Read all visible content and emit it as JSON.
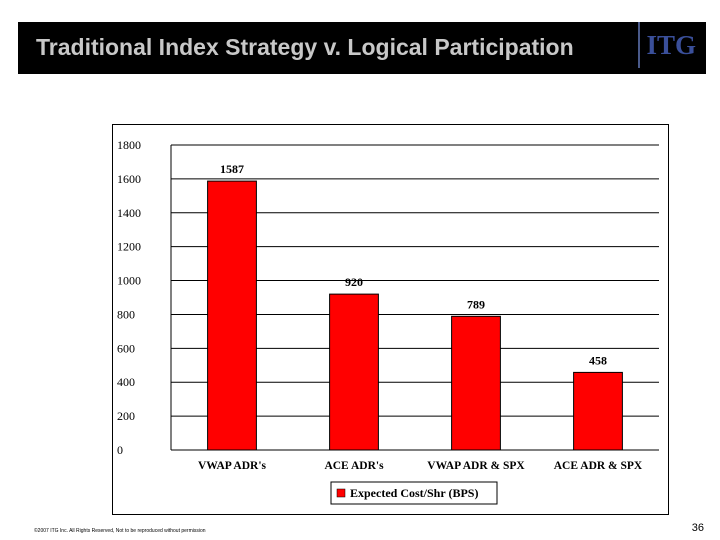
{
  "slide": {
    "title": "Traditional Index Strategy v. Logical Participation",
    "logo_text": "ITG",
    "footer": "©2007 ITG Inc. All Rights Reserved, Not to be reproduced without permission",
    "page_number": "36"
  },
  "colors": {
    "header_bg": "#000000",
    "title_text": "#c8c8c8",
    "logo": "#3a4f9a",
    "bar_fill": "#ff0000"
  },
  "chart_data": {
    "type": "bar",
    "categories": [
      "VWAP ADR's",
      "ACE ADR's",
      "VWAP ADR & SPX",
      "ACE ADR & SPX"
    ],
    "series": [
      {
        "name": "Expected Cost/Shr (BPS)",
        "values": [
          1587,
          920,
          789,
          458
        ]
      }
    ],
    "data_labels": [
      "1587",
      "920",
      "789",
      "458"
    ],
    "yticks": [
      0,
      200,
      400,
      600,
      800,
      1000,
      1200,
      1400,
      1600,
      1800
    ],
    "ylim": [
      0,
      1800
    ],
    "grid": true,
    "legend_position": "bottom"
  }
}
